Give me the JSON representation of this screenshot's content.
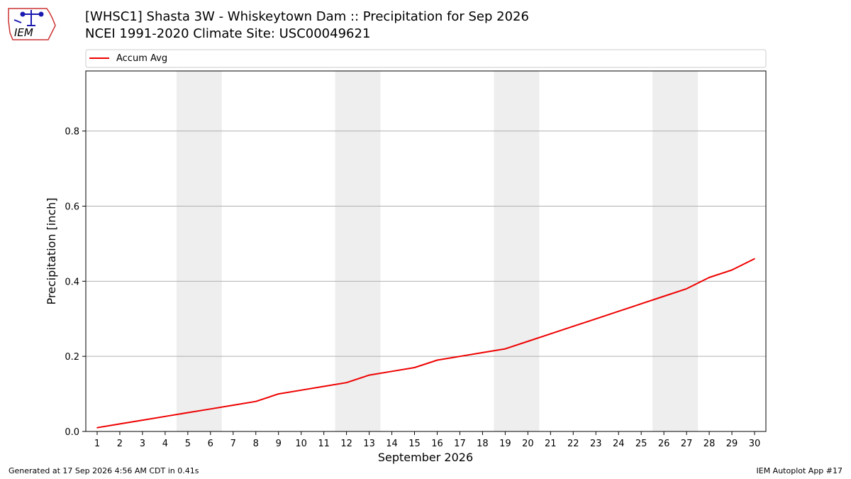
{
  "header": {
    "title_line1": "[WHSC1] Shasta 3W - Whiskeytown Dam :: Precipitation for Sep 2026",
    "title_line2": "NCEI 1991-2020 Climate Site: USC00049621",
    "logo_text": "IEM"
  },
  "footer": {
    "generated": "Generated at 17 Sep 2026 4:56 AM CDT in 0.41s",
    "app": "IEM Autoplot App #17"
  },
  "colors": {
    "line": "#ee0000",
    "weekend_shade": "#eeeeee",
    "grid": "#b0b0b0",
    "logo": "#1a1ab0",
    "logo_border": "#cc3333"
  },
  "chart_data": {
    "type": "line",
    "xlabel": "September 2026",
    "ylabel": "Precipitation [inch]",
    "x": [
      1,
      2,
      3,
      4,
      5,
      6,
      7,
      8,
      9,
      10,
      11,
      12,
      13,
      14,
      15,
      16,
      17,
      18,
      19,
      20,
      21,
      22,
      23,
      24,
      25,
      26,
      27,
      28,
      29,
      30
    ],
    "x_tick_labels": [
      "1",
      "2",
      "3",
      "4",
      "5",
      "6",
      "7",
      "8",
      "9",
      "10",
      "11",
      "12",
      "13",
      "14",
      "15",
      "16",
      "17",
      "18",
      "19",
      "20",
      "21",
      "22",
      "23",
      "24",
      "25",
      "26",
      "27",
      "28",
      "29",
      "30"
    ],
    "xlim": [
      0.5,
      30.5
    ],
    "ylim": [
      0,
      0.96
    ],
    "y_ticks": [
      0.0,
      0.2,
      0.4,
      0.6,
      0.8
    ],
    "y_tick_labels": [
      "0.0",
      "0.2",
      "0.4",
      "0.6",
      "0.8"
    ],
    "grid": "horizontal",
    "legend_position": "top, above plot",
    "weekend_shading": [
      [
        5,
        6
      ],
      [
        12,
        13
      ],
      [
        19,
        20
      ],
      [
        26,
        27
      ]
    ],
    "series": [
      {
        "name": "Accum Avg",
        "values": [
          0.01,
          0.02,
          0.03,
          0.04,
          0.05,
          0.06,
          0.07,
          0.08,
          0.1,
          0.11,
          0.12,
          0.13,
          0.15,
          0.16,
          0.17,
          0.19,
          0.2,
          0.21,
          0.22,
          0.24,
          0.26,
          0.28,
          0.3,
          0.32,
          0.34,
          0.36,
          0.38,
          0.41,
          0.43,
          0.46
        ]
      }
    ]
  }
}
